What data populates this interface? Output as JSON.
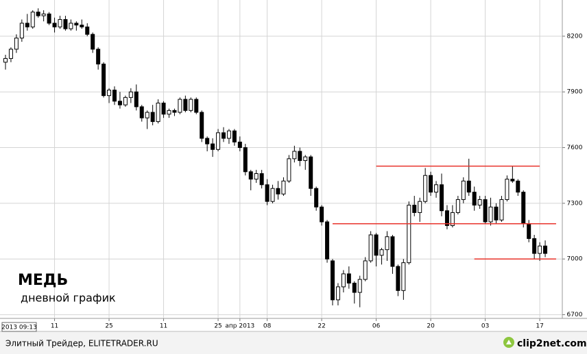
{
  "chart_data": {
    "type": "candlestick",
    "title": "МЕДЬ",
    "subtitle": "дневной график",
    "cursor_label": "2013 09:13",
    "source": "Элитный Трейдер, ELITETRADER.RU",
    "logo": "clip2net.com",
    "categories": [
      null,
      null,
      null,
      null,
      null,
      null,
      null,
      null,
      null,
      "11",
      null,
      null,
      null,
      null,
      null,
      null,
      null,
      null,
      null,
      "25",
      null,
      null,
      null,
      null,
      null,
      null,
      null,
      null,
      null,
      "11",
      null,
      null,
      null,
      null,
      null,
      null,
      null,
      null,
      null,
      "25",
      null,
      null,
      null,
      "апр 2013",
      null,
      null,
      null,
      null,
      "08",
      null,
      null,
      null,
      null,
      null,
      null,
      null,
      null,
      null,
      "22",
      null,
      null,
      null,
      null,
      null,
      null,
      null,
      null,
      null,
      "06",
      null,
      null,
      null,
      null,
      null,
      null,
      null,
      null,
      null,
      "20",
      null,
      null,
      null,
      null,
      null,
      null,
      null,
      null,
      null,
      "03",
      null,
      null,
      null,
      null,
      null,
      null,
      null,
      null,
      null,
      "17",
      null
    ],
    "open": [
      8060,
      8080,
      8130,
      8190,
      8270,
      8250,
      8330,
      8310,
      8320,
      8270,
      8250,
      8290,
      8240,
      8270,
      8260,
      8250,
      8210,
      8130,
      8050,
      7880,
      7910,
      7850,
      7830,
      7870,
      7900,
      7820,
      7760,
      7790,
      7740,
      7840,
      7780,
      7800,
      7790,
      7860,
      7800,
      7860,
      7790,
      7650,
      7620,
      7590,
      7680,
      7650,
      7690,
      7630,
      7600,
      7470,
      7430,
      7460,
      7400,
      7310,
      7380,
      7350,
      7420,
      7540,
      7580,
      7530,
      7550,
      7380,
      7280,
      7200,
      6990,
      6780,
      6850,
      6920,
      6870,
      6820,
      6890,
      6990,
      7130,
      7020,
      7050,
      7120,
      6960,
      6830,
      6980,
      7290,
      7250,
      7310,
      7450,
      7360,
      7400,
      7260,
      7180,
      7250,
      7320,
      7420,
      7360,
      7290,
      7320,
      7200,
      7280,
      7210,
      7320,
      7430,
      7420,
      7360,
      7190,
      7110,
      7030,
      7070
    ],
    "high": [
      8100,
      8140,
      8210,
      8290,
      8320,
      8340,
      8350,
      8340,
      8330,
      8300,
      8310,
      8310,
      8290,
      8280,
      8290,
      8270,
      8220,
      8140,
      8060,
      7920,
      7930,
      7900,
      7880,
      7920,
      7940,
      7830,
      7800,
      7830,
      7860,
      7850,
      7810,
      7810,
      7870,
      7880,
      7870,
      7870,
      7800,
      7660,
      7650,
      7700,
      7710,
      7700,
      7700,
      7660,
      7620,
      7480,
      7480,
      7480,
      7430,
      7400,
      7420,
      7440,
      7560,
      7610,
      7600,
      7560,
      7560,
      7390,
      7290,
      7210,
      7000,
      6870,
      6940,
      6960,
      6880,
      6910,
      7010,
      7150,
      7140,
      7060,
      7150,
      7130,
      6970,
      7000,
      7310,
      7340,
      7330,
      7490,
      7470,
      7420,
      7460,
      7290,
      7290,
      7340,
      7440,
      7540,
      7390,
      7340,
      7340,
      7330,
      7300,
      7340,
      7450,
      7500,
      7430,
      7370,
      7210,
      7130,
      7090,
      7100
    ],
    "low": [
      8020,
      8060,
      8110,
      8170,
      8230,
      8240,
      8300,
      8280,
      8260,
      8220,
      8240,
      8230,
      8230,
      8230,
      8240,
      8200,
      8110,
      8020,
      7870,
      7840,
      7830,
      7810,
      7820,
      7840,
      7800,
      7740,
      7700,
      7720,
      7730,
      7760,
      7760,
      7770,
      7780,
      7790,
      7790,
      7780,
      7630,
      7580,
      7550,
      7580,
      7630,
      7620,
      7610,
      7580,
      7450,
      7370,
      7410,
      7380,
      7290,
      7300,
      7320,
      7340,
      7410,
      7520,
      7500,
      7480,
      7340,
      7260,
      7180,
      6980,
      6750,
      6750,
      6820,
      6840,
      6760,
      6740,
      6880,
      6980,
      6960,
      6970,
      6990,
      6920,
      6800,
      6780,
      6970,
      7230,
      7200,
      7300,
      7340,
      7330,
      7230,
      7160,
      7170,
      7240,
      7300,
      7340,
      7260,
      7270,
      7190,
      7180,
      7190,
      7200,
      7310,
      7410,
      7340,
      7170,
      7090,
      7000,
      6990,
      7010
    ],
    "close": [
      8080,
      8130,
      8190,
      8270,
      8250,
      8330,
      8310,
      8320,
      8270,
      8250,
      8290,
      8240,
      8270,
      8260,
      8250,
      8210,
      8130,
      8050,
      7880,
      7910,
      7850,
      7830,
      7870,
      7900,
      7820,
      7760,
      7790,
      7740,
      7840,
      7780,
      7800,
      7790,
      7860,
      7800,
      7860,
      7790,
      7650,
      7620,
      7590,
      7680,
      7650,
      7690,
      7630,
      7600,
      7470,
      7430,
      7460,
      7400,
      7310,
      7380,
      7350,
      7420,
      7540,
      7580,
      7530,
      7550,
      7380,
      7280,
      7200,
      7000,
      6780,
      6850,
      6920,
      6870,
      6820,
      6890,
      6990,
      7130,
      7020,
      7050,
      7120,
      6960,
      6830,
      6980,
      7290,
      7250,
      7310,
      7450,
      7360,
      7400,
      7260,
      7180,
      7250,
      7320,
      7420,
      7360,
      7290,
      7320,
      7200,
      7280,
      7210,
      7320,
      7430,
      7420,
      7360,
      7190,
      7110,
      7030,
      7070,
      7030
    ],
    "up_color": "#ffffff",
    "down_color": "#000000",
    "levels": [
      {
        "value": 7500,
        "from": 68,
        "to": 98,
        "color": "#e8322a"
      },
      {
        "value": 7190,
        "from": 60,
        "to": 101,
        "color": "#e8322a"
      },
      {
        "value": 7000,
        "from": 86,
        "to": 101,
        "color": "#e8322a"
      }
    ],
    "ylim": [
      6680,
      8395
    ],
    "yticks": [
      6700,
      7000,
      7300,
      7600,
      7900,
      8200
    ],
    "grid": true
  }
}
